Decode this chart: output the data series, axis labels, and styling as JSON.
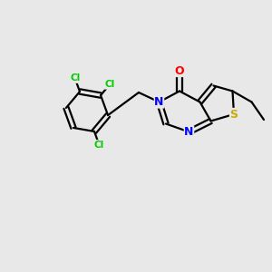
{
  "bg_color": "#e8e8e8",
  "bond_color": "#000000",
  "bond_lw": 1.6,
  "colors": {
    "N": "#0000ff",
    "O": "#ff0000",
    "S": "#ccaa00",
    "Cl": "#00cc00"
  },
  "xlim": [
    0,
    10
  ],
  "ylim": [
    0,
    10
  ]
}
